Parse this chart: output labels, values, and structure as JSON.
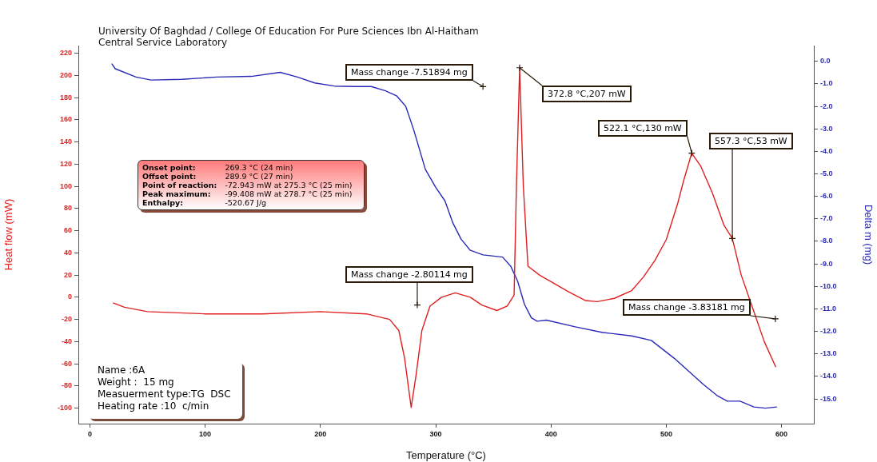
{
  "chart_data": {
    "type": "line",
    "title": "University Of Baghdad / College Of Education For Pure Sciences Ibn Al-Haitham",
    "subtitle": "Central Service Laboratory",
    "xlabel": "Temperature (°C)",
    "ylabel": "Heat flow (mW)",
    "y2label": "Delta m (mg)",
    "xlim": [
      -10,
      628
    ],
    "xticks": [
      0,
      100,
      200,
      300,
      400,
      500,
      600
    ],
    "ylim": [
      -114,
      227
    ],
    "yticks": [
      -100,
      -80,
      -60,
      -40,
      -20,
      0,
      20,
      40,
      60,
      80,
      100,
      120,
      140,
      160,
      180,
      200,
      220
    ],
    "y2lim": [
      -16.1,
      0.7
    ],
    "y2ticks": [
      {
        "value": 0,
        "label": "0.0"
      },
      {
        "value": -1,
        "label": "-1.0"
      },
      {
        "value": -2,
        "label": "-2.0"
      },
      {
        "value": -3,
        "label": "-3.0"
      },
      {
        "value": -4,
        "label": "-4.0"
      },
      {
        "value": -5,
        "label": "-5.0"
      },
      {
        "value": -6,
        "label": "-6.0"
      },
      {
        "value": -7,
        "label": "-7.0"
      },
      {
        "value": -8,
        "label": "-8.0"
      },
      {
        "value": -9,
        "label": "-9.0"
      },
      {
        "value": -10,
        "label": "-10.0"
      },
      {
        "value": -11,
        "label": "-11.0"
      },
      {
        "value": -12,
        "label": "-12.0"
      },
      {
        "value": -13,
        "label": "-13.0"
      },
      {
        "value": -14,
        "label": "-14.0"
      },
      {
        "value": -15,
        "label": "-15.0"
      }
    ],
    "grid": false,
    "legend": false,
    "marker": "none",
    "line_style": "solid",
    "series": [
      {
        "color": "#e02020",
        "x": [
          20,
          30,
          50,
          100,
          150,
          200,
          240,
          260,
          268,
          273,
          278.7,
          283,
          288,
          295,
          305,
          317,
          330,
          340,
          353,
          362,
          368,
          370,
          372.8,
          376,
          380,
          390,
          400,
          415,
          430,
          440,
          455,
          470,
          480,
          490,
          500,
          510,
          515,
          522.1,
          530,
          540,
          550,
          557.3,
          565,
          575,
          585,
          595
        ],
        "values": [
          -5,
          -9,
          -13,
          -15,
          -15,
          -13,
          -15,
          -20,
          -30,
          -55,
          -99.4,
          -70,
          -30,
          -8,
          0,
          4,
          0,
          -7,
          -12,
          -8,
          2,
          100,
          207,
          100,
          28,
          20,
          14,
          5,
          -3,
          -4,
          -1,
          6,
          18,
          33,
          52,
          85,
          105,
          130,
          118,
          94,
          65,
          53,
          20,
          -10,
          -40,
          -63
        ]
      },
      {
        "color": "#2a2ab8",
        "axis": "y2",
        "x": [
          19,
          22,
          40,
          53,
          80,
          110,
          140,
          165,
          180,
          195,
          212,
          230,
          244,
          256,
          266,
          274,
          281,
          291,
          300,
          308,
          315,
          322,
          330,
          341,
          358,
          365,
          371,
          377,
          383,
          388,
          396,
          421,
          445,
          470,
          487,
          507,
          532,
          544,
          553,
          564,
          576,
          586,
          596
        ],
        "values": [
          -0.1,
          -0.33,
          -0.7,
          -0.83,
          -0.8,
          -0.7,
          -0.67,
          -0.49,
          -0.7,
          -0.96,
          -1.1,
          -1.12,
          -1.12,
          -1.3,
          -1.53,
          -2.0,
          -3.06,
          -4.8,
          -5.6,
          -6.2,
          -7.2,
          -7.9,
          -8.4,
          -8.6,
          -8.7,
          -9.1,
          -9.76,
          -10.8,
          -11.4,
          -11.55,
          -11.5,
          -11.8,
          -12.05,
          -12.2,
          -12.4,
          -13.2,
          -14.35,
          -14.85,
          -15.1,
          -15.1,
          -15.36,
          -15.41,
          -15.36
        ]
      }
    ],
    "annotations": [
      {
        "text": "Mass change  -7.51894 mg",
        "x": 341,
        "y": 190
      },
      {
        "text": "372.8 °C,207 mW",
        "x": 372.8,
        "y": 207
      },
      {
        "text": "522.1 °C,130 mW",
        "x": 522.1,
        "y": 130
      },
      {
        "text": "557.3 °C,53 mW",
        "x": 557.3,
        "y": 53
      },
      {
        "text": "Mass change  -2.80114 mg",
        "x": 284,
        "y": -7
      },
      {
        "text": "Mass change  -3.83181 mg",
        "x": 594.6,
        "y": -19.5
      },
      "Onset point:\t269.3 °C (24 min)",
      "Offset point:\t289.9 °C (27 min)",
      "Point of reaction:\t-72.943 mW at 275.3 °C (25 min)",
      "Peak maximum:\t-99.408 mW at 278.7 °C (25 min)",
      "Enthalpy:\t-520.67 J/g",
      "Name :6A",
      "Weight :  15 mg",
      "Measuerment type:TG  DSC",
      "Heating rate :10  c/min"
    ]
  }
}
